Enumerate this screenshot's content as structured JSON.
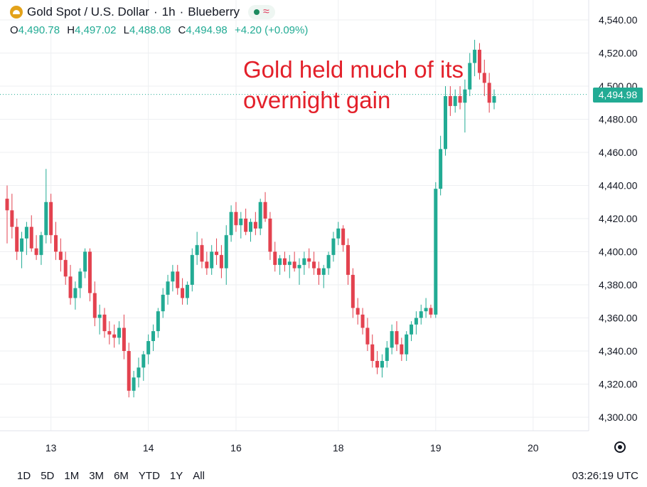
{
  "header": {
    "instrument": "Gold Spot / U.S. Dollar",
    "separator1": "·",
    "interval": "1h",
    "separator2": "·",
    "source": "Blueberry",
    "wave_glyph": "≈"
  },
  "ohlc": {
    "o_key": "O",
    "o": "4,490.78",
    "h_key": "H",
    "h": "4,497.02",
    "l_key": "L",
    "l": "4,488.08",
    "c_key": "C",
    "c": "4,494.98",
    "change": "+4.20 (+0.09%)"
  },
  "annotation": {
    "line1": "Gold held much of its",
    "line2": "overnight gain"
  },
  "last_price_label": "4,494.98",
  "range_buttons": [
    "1D",
    "5D",
    "1M",
    "3M",
    "6M",
    "YTD",
    "1Y",
    "All"
  ],
  "clock": "03:26:19 UTC",
  "colors": {
    "up": "#22ab94",
    "down": "#e3424f",
    "grid": "#eeeff2",
    "annotation": "#e3202a",
    "accent": "#e3a21a"
  },
  "chart_data": {
    "type": "candlestick",
    "title": "Gold Spot / U.S. Dollar · 1h · Blueberry",
    "ylim": [
      4290,
      4545
    ],
    "y_ticks": [
      4300,
      4320,
      4340,
      4360,
      4380,
      4400,
      4420,
      4440,
      4460,
      4480,
      4500,
      4520,
      4540
    ],
    "y_tick_labels": [
      "4,300.00",
      "4,320.00",
      "4,340.00",
      "4,360.00",
      "4,380.00",
      "4,400.00",
      "4,420.00",
      "4,440.00",
      "4,460.00",
      "4,480.00",
      "4,500.00",
      "4,520.00",
      "4,540.00"
    ],
    "x_ticks": [
      {
        "label": "13",
        "bar": 9
      },
      {
        "label": "14",
        "bar": 29
      },
      {
        "label": "16",
        "bar": 47
      },
      {
        "label": "18",
        "bar": 68
      },
      {
        "label": "19",
        "bar": 88
      },
      {
        "label": "20",
        "bar": 108
      }
    ],
    "last_price": 4494.98,
    "grid": true,
    "candles": [
      [
        4432,
        4440,
        4405,
        4425
      ],
      [
        4425,
        4435,
        4408,
        4415
      ],
      [
        4415,
        4420,
        4395,
        4400
      ],
      [
        4400,
        4412,
        4390,
        4408
      ],
      [
        4408,
        4418,
        4398,
        4415
      ],
      [
        4415,
        4422,
        4400,
        4402
      ],
      [
        4402,
        4410,
        4395,
        4398
      ],
      [
        4398,
        4412,
        4392,
        4410
      ],
      [
        4410,
        4450,
        4405,
        4430
      ],
      [
        4430,
        4435,
        4405,
        4410
      ],
      [
        4410,
        4418,
        4395,
        4400
      ],
      [
        4400,
        4408,
        4388,
        4395
      ],
      [
        4395,
        4400,
        4380,
        4385
      ],
      [
        4385,
        4392,
        4368,
        4372
      ],
      [
        4372,
        4382,
        4365,
        4378
      ],
      [
        4378,
        4390,
        4372,
        4388
      ],
      [
        4388,
        4402,
        4384,
        4400
      ],
      [
        4400,
        4402,
        4370,
        4375
      ],
      [
        4375,
        4382,
        4355,
        4360
      ],
      [
        4360,
        4368,
        4350,
        4362
      ],
      [
        4362,
        4366,
        4348,
        4352
      ],
      [
        4352,
        4358,
        4344,
        4350
      ],
      [
        4350,
        4356,
        4342,
        4348
      ],
      [
        4348,
        4358,
        4344,
        4354
      ],
      [
        4354,
        4362,
        4335,
        4340
      ],
      [
        4340,
        4345,
        4312,
        4316
      ],
      [
        4316,
        4328,
        4312,
        4324
      ],
      [
        4324,
        4336,
        4318,
        4330
      ],
      [
        4330,
        4340,
        4322,
        4338
      ],
      [
        4338,
        4350,
        4332,
        4346
      ],
      [
        4346,
        4356,
        4340,
        4352
      ],
      [
        4352,
        4366,
        4348,
        4364
      ],
      [
        4364,
        4378,
        4360,
        4374
      ],
      [
        4374,
        4386,
        4368,
        4382
      ],
      [
        4382,
        4392,
        4376,
        4388
      ],
      [
        4388,
        4392,
        4374,
        4378
      ],
      [
        4378,
        4384,
        4368,
        4372
      ],
      [
        4372,
        4382,
        4368,
        4380
      ],
      [
        4380,
        4402,
        4376,
        4398
      ],
      [
        4398,
        4412,
        4392,
        4404
      ],
      [
        4404,
        4408,
        4390,
        4394
      ],
      [
        4394,
        4400,
        4386,
        4390
      ],
      [
        4390,
        4404,
        4386,
        4400
      ],
      [
        4400,
        4408,
        4392,
        4398
      ],
      [
        4398,
        4404,
        4384,
        4390
      ],
      [
        4390,
        4416,
        4380,
        4410
      ],
      [
        4410,
        4428,
        4406,
        4424
      ],
      [
        4424,
        4430,
        4412,
        4416
      ],
      [
        4416,
        4424,
        4408,
        4420
      ],
      [
        4420,
        4426,
        4410,
        4412
      ],
      [
        4412,
        4420,
        4406,
        4418
      ],
      [
        4418,
        4424,
        4410,
        4414
      ],
      [
        4414,
        4432,
        4410,
        4430
      ],
      [
        4430,
        4436,
        4418,
        4420
      ],
      [
        4420,
        4424,
        4395,
        4400
      ],
      [
        4400,
        4406,
        4388,
        4392
      ],
      [
        4392,
        4398,
        4386,
        4396
      ],
      [
        4396,
        4400,
        4388,
        4392
      ],
      [
        4392,
        4398,
        4384,
        4394
      ],
      [
        4394,
        4400,
        4388,
        4390
      ],
      [
        4390,
        4396,
        4380,
        4392
      ],
      [
        4392,
        4400,
        4386,
        4396
      ],
      [
        4396,
        4402,
        4390,
        4394
      ],
      [
        4394,
        4400,
        4386,
        4390
      ],
      [
        4390,
        4394,
        4380,
        4386
      ],
      [
        4386,
        4392,
        4378,
        4390
      ],
      [
        4390,
        4400,
        4386,
        4398
      ],
      [
        4398,
        4412,
        4394,
        4408
      ],
      [
        4408,
        4418,
        4404,
        4414
      ],
      [
        4414,
        4416,
        4400,
        4404
      ],
      [
        4404,
        4408,
        4380,
        4386
      ],
      [
        4386,
        4390,
        4360,
        4366
      ],
      [
        4366,
        4372,
        4356,
        4362
      ],
      [
        4362,
        4366,
        4350,
        4354
      ],
      [
        4354,
        4360,
        4340,
        4344
      ],
      [
        4344,
        4350,
        4330,
        4334
      ],
      [
        4334,
        4340,
        4326,
        4330
      ],
      [
        4330,
        4338,
        4324,
        4334
      ],
      [
        4334,
        4346,
        4330,
        4342
      ],
      [
        4342,
        4356,
        4338,
        4352
      ],
      [
        4352,
        4358,
        4340,
        4344
      ],
      [
        4344,
        4348,
        4334,
        4338
      ],
      [
        4338,
        4352,
        4334,
        4350
      ],
      [
        4350,
        4358,
        4346,
        4356
      ],
      [
        4356,
        4364,
        4350,
        4360
      ],
      [
        4360,
        4368,
        4356,
        4364
      ],
      [
        4364,
        4372,
        4360,
        4366
      ],
      [
        4366,
        4368,
        4360,
        4362
      ],
      [
        4362,
        4442,
        4360,
        4438
      ],
      [
        4438,
        4470,
        4434,
        4462
      ],
      [
        4462,
        4500,
        4458,
        4494
      ],
      [
        4494,
        4500,
        4482,
        4488
      ],
      [
        4488,
        4498,
        4484,
        4494
      ],
      [
        4494,
        4500,
        4486,
        4490
      ],
      [
        4490,
        4504,
        4472,
        4498
      ],
      [
        4498,
        4520,
        4494,
        4514
      ],
      [
        4514,
        4528,
        4506,
        4522
      ],
      [
        4522,
        4526,
        4504,
        4508
      ],
      [
        4508,
        4516,
        4494,
        4502
      ],
      [
        4502,
        4508,
        4484,
        4490
      ],
      [
        4490,
        4498,
        4486,
        4494
      ]
    ]
  }
}
